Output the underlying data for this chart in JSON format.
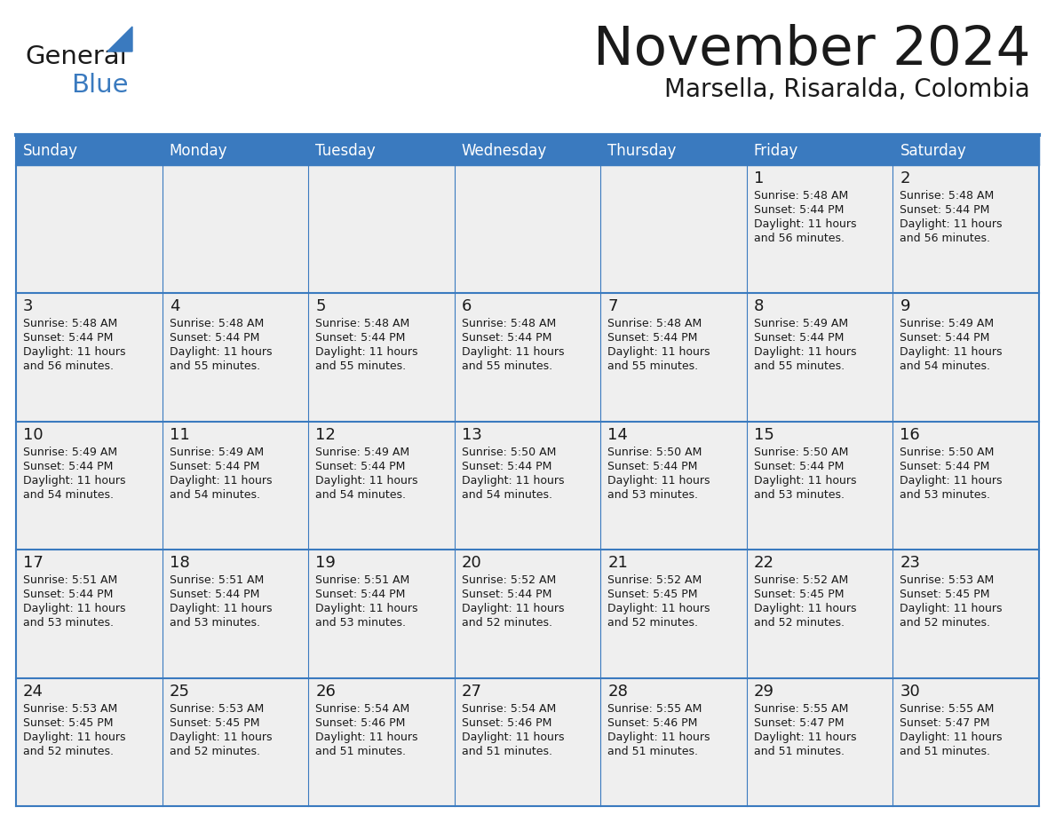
{
  "title": "November 2024",
  "subtitle": "Marsella, Risaralda, Colombia",
  "days_of_week": [
    "Sunday",
    "Monday",
    "Tuesday",
    "Wednesday",
    "Thursday",
    "Friday",
    "Saturday"
  ],
  "header_bg": "#3a7abf",
  "header_text": "#ffffff",
  "cell_bg": "#efefef",
  "border_color": "#3a7abf",
  "text_color": "#1a1a1a",
  "small_text_color": "#1a1a1a",
  "calendar_data": [
    [
      {
        "day": null,
        "sunrise": null,
        "sunset": null,
        "daylight": null
      },
      {
        "day": null,
        "sunrise": null,
        "sunset": null,
        "daylight": null
      },
      {
        "day": null,
        "sunrise": null,
        "sunset": null,
        "daylight": null
      },
      {
        "day": null,
        "sunrise": null,
        "sunset": null,
        "daylight": null
      },
      {
        "day": null,
        "sunrise": null,
        "sunset": null,
        "daylight": null
      },
      {
        "day": 1,
        "sunrise": "5:48 AM",
        "sunset": "5:44 PM",
        "daylight": "11 hours\nand 56 minutes."
      },
      {
        "day": 2,
        "sunrise": "5:48 AM",
        "sunset": "5:44 PM",
        "daylight": "11 hours\nand 56 minutes."
      }
    ],
    [
      {
        "day": 3,
        "sunrise": "5:48 AM",
        "sunset": "5:44 PM",
        "daylight": "11 hours\nand 56 minutes."
      },
      {
        "day": 4,
        "sunrise": "5:48 AM",
        "sunset": "5:44 PM",
        "daylight": "11 hours\nand 55 minutes."
      },
      {
        "day": 5,
        "sunrise": "5:48 AM",
        "sunset": "5:44 PM",
        "daylight": "11 hours\nand 55 minutes."
      },
      {
        "day": 6,
        "sunrise": "5:48 AM",
        "sunset": "5:44 PM",
        "daylight": "11 hours\nand 55 minutes."
      },
      {
        "day": 7,
        "sunrise": "5:48 AM",
        "sunset": "5:44 PM",
        "daylight": "11 hours\nand 55 minutes."
      },
      {
        "day": 8,
        "sunrise": "5:49 AM",
        "sunset": "5:44 PM",
        "daylight": "11 hours\nand 55 minutes."
      },
      {
        "day": 9,
        "sunrise": "5:49 AM",
        "sunset": "5:44 PM",
        "daylight": "11 hours\nand 54 minutes."
      }
    ],
    [
      {
        "day": 10,
        "sunrise": "5:49 AM",
        "sunset": "5:44 PM",
        "daylight": "11 hours\nand 54 minutes."
      },
      {
        "day": 11,
        "sunrise": "5:49 AM",
        "sunset": "5:44 PM",
        "daylight": "11 hours\nand 54 minutes."
      },
      {
        "day": 12,
        "sunrise": "5:49 AM",
        "sunset": "5:44 PM",
        "daylight": "11 hours\nand 54 minutes."
      },
      {
        "day": 13,
        "sunrise": "5:50 AM",
        "sunset": "5:44 PM",
        "daylight": "11 hours\nand 54 minutes."
      },
      {
        "day": 14,
        "sunrise": "5:50 AM",
        "sunset": "5:44 PM",
        "daylight": "11 hours\nand 53 minutes."
      },
      {
        "day": 15,
        "sunrise": "5:50 AM",
        "sunset": "5:44 PM",
        "daylight": "11 hours\nand 53 minutes."
      },
      {
        "day": 16,
        "sunrise": "5:50 AM",
        "sunset": "5:44 PM",
        "daylight": "11 hours\nand 53 minutes."
      }
    ],
    [
      {
        "day": 17,
        "sunrise": "5:51 AM",
        "sunset": "5:44 PM",
        "daylight": "11 hours\nand 53 minutes."
      },
      {
        "day": 18,
        "sunrise": "5:51 AM",
        "sunset": "5:44 PM",
        "daylight": "11 hours\nand 53 minutes."
      },
      {
        "day": 19,
        "sunrise": "5:51 AM",
        "sunset": "5:44 PM",
        "daylight": "11 hours\nand 53 minutes."
      },
      {
        "day": 20,
        "sunrise": "5:52 AM",
        "sunset": "5:44 PM",
        "daylight": "11 hours\nand 52 minutes."
      },
      {
        "day": 21,
        "sunrise": "5:52 AM",
        "sunset": "5:45 PM",
        "daylight": "11 hours\nand 52 minutes."
      },
      {
        "day": 22,
        "sunrise": "5:52 AM",
        "sunset": "5:45 PM",
        "daylight": "11 hours\nand 52 minutes."
      },
      {
        "day": 23,
        "sunrise": "5:53 AM",
        "sunset": "5:45 PM",
        "daylight": "11 hours\nand 52 minutes."
      }
    ],
    [
      {
        "day": 24,
        "sunrise": "5:53 AM",
        "sunset": "5:45 PM",
        "daylight": "11 hours\nand 52 minutes."
      },
      {
        "day": 25,
        "sunrise": "5:53 AM",
        "sunset": "5:45 PM",
        "daylight": "11 hours\nand 52 minutes."
      },
      {
        "day": 26,
        "sunrise": "5:54 AM",
        "sunset": "5:46 PM",
        "daylight": "11 hours\nand 51 minutes."
      },
      {
        "day": 27,
        "sunrise": "5:54 AM",
        "sunset": "5:46 PM",
        "daylight": "11 hours\nand 51 minutes."
      },
      {
        "day": 28,
        "sunrise": "5:55 AM",
        "sunset": "5:46 PM",
        "daylight": "11 hours\nand 51 minutes."
      },
      {
        "day": 29,
        "sunrise": "5:55 AM",
        "sunset": "5:47 PM",
        "daylight": "11 hours\nand 51 minutes."
      },
      {
        "day": 30,
        "sunrise": "5:55 AM",
        "sunset": "5:47 PM",
        "daylight": "11 hours\nand 51 minutes."
      }
    ]
  ],
  "logo_general_color": "#1a1a1a",
  "logo_blue_color": "#3a7abf",
  "logo_triangle_color": "#3a7abf"
}
